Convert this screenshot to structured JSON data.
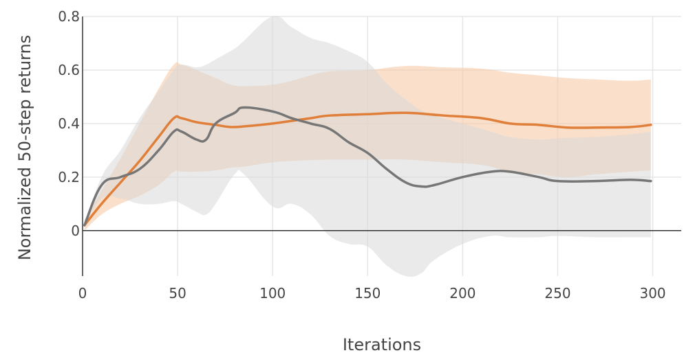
{
  "chart_data": {
    "type": "line",
    "title": "",
    "xlabel": "Iterations",
    "ylabel": "Normalized 50-step returns",
    "xlim": [
      0,
      315
    ],
    "ylim": [
      -0.17,
      0.8
    ],
    "grid": true,
    "legend": "none",
    "x_ticks": [
      0,
      50,
      100,
      150,
      200,
      250,
      300
    ],
    "x_tick_labels": [
      "0",
      "50",
      "100",
      "150",
      "200",
      "250",
      "300"
    ],
    "y_ticks": [
      0,
      0.2,
      0.4,
      0.6,
      0.8
    ],
    "y_tick_labels": [
      "0",
      "0.2",
      "0.4",
      "0.6",
      "0.8"
    ],
    "series": [
      {
        "color": "#e07f3a",
        "band_color": "#f7c9a6",
        "x": [
          1,
          10,
          20,
          30,
          40,
          48,
          52,
          60,
          70,
          78,
          86,
          100,
          110,
          120,
          130,
          150,
          170,
          190,
          210,
          225,
          240,
          255,
          270,
          288,
          299
        ],
        "y": [
          0.02,
          0.1,
          0.18,
          0.26,
          0.35,
          0.42,
          0.42,
          0.405,
          0.395,
          0.387,
          0.39,
          0.4,
          0.41,
          0.42,
          0.43,
          0.435,
          0.44,
          0.43,
          0.42,
          0.4,
          0.395,
          0.385,
          0.385,
          0.387,
          0.395
        ],
        "upper": [
          0.04,
          0.15,
          0.27,
          0.4,
          0.53,
          0.62,
          0.62,
          0.6,
          0.57,
          0.545,
          0.54,
          0.545,
          0.56,
          0.58,
          0.595,
          0.6,
          0.615,
          0.61,
          0.605,
          0.59,
          0.58,
          0.57,
          0.565,
          0.56,
          0.565
        ],
        "lower": [
          0.0,
          0.06,
          0.1,
          0.13,
          0.17,
          0.22,
          0.22,
          0.22,
          0.225,
          0.235,
          0.24,
          0.255,
          0.26,
          0.263,
          0.265,
          0.265,
          0.265,
          0.255,
          0.245,
          0.22,
          0.21,
          0.2,
          0.21,
          0.22,
          0.225
        ]
      },
      {
        "color": "#767676",
        "band_color": "#d9d9d9",
        "x": [
          1,
          10,
          20,
          30,
          40,
          48,
          52,
          60,
          65,
          70,
          80,
          85,
          100,
          110,
          120,
          130,
          140,
          150,
          160,
          170,
          178,
          185,
          200,
          215,
          225,
          240,
          250,
          270,
          288,
          299
        ],
        "y": [
          0.02,
          0.17,
          0.2,
          0.23,
          0.3,
          0.37,
          0.37,
          0.34,
          0.34,
          0.4,
          0.44,
          0.46,
          0.445,
          0.42,
          0.4,
          0.38,
          0.33,
          0.29,
          0.23,
          0.18,
          0.165,
          0.17,
          0.2,
          0.22,
          0.22,
          0.2,
          0.185,
          0.185,
          0.19,
          0.185
        ],
        "upper": [
          0.02,
          0.2,
          0.3,
          0.42,
          0.52,
          0.6,
          0.62,
          0.61,
          0.62,
          0.64,
          0.68,
          0.71,
          0.8,
          0.76,
          0.72,
          0.7,
          0.67,
          0.63,
          0.55,
          0.49,
          0.45,
          0.43,
          0.4,
          0.37,
          0.35,
          0.34,
          0.345,
          0.35,
          0.36,
          0.37
        ],
        "lower": [
          0.02,
          0.12,
          0.12,
          0.1,
          0.1,
          0.11,
          0.1,
          0.07,
          0.06,
          0.1,
          0.21,
          0.21,
          0.09,
          0.1,
          0.06,
          -0.02,
          -0.05,
          -0.06,
          -0.13,
          -0.17,
          -0.16,
          -0.11,
          -0.05,
          -0.02,
          -0.025,
          -0.025,
          -0.02,
          -0.025,
          -0.025,
          -0.025
        ]
      }
    ]
  }
}
